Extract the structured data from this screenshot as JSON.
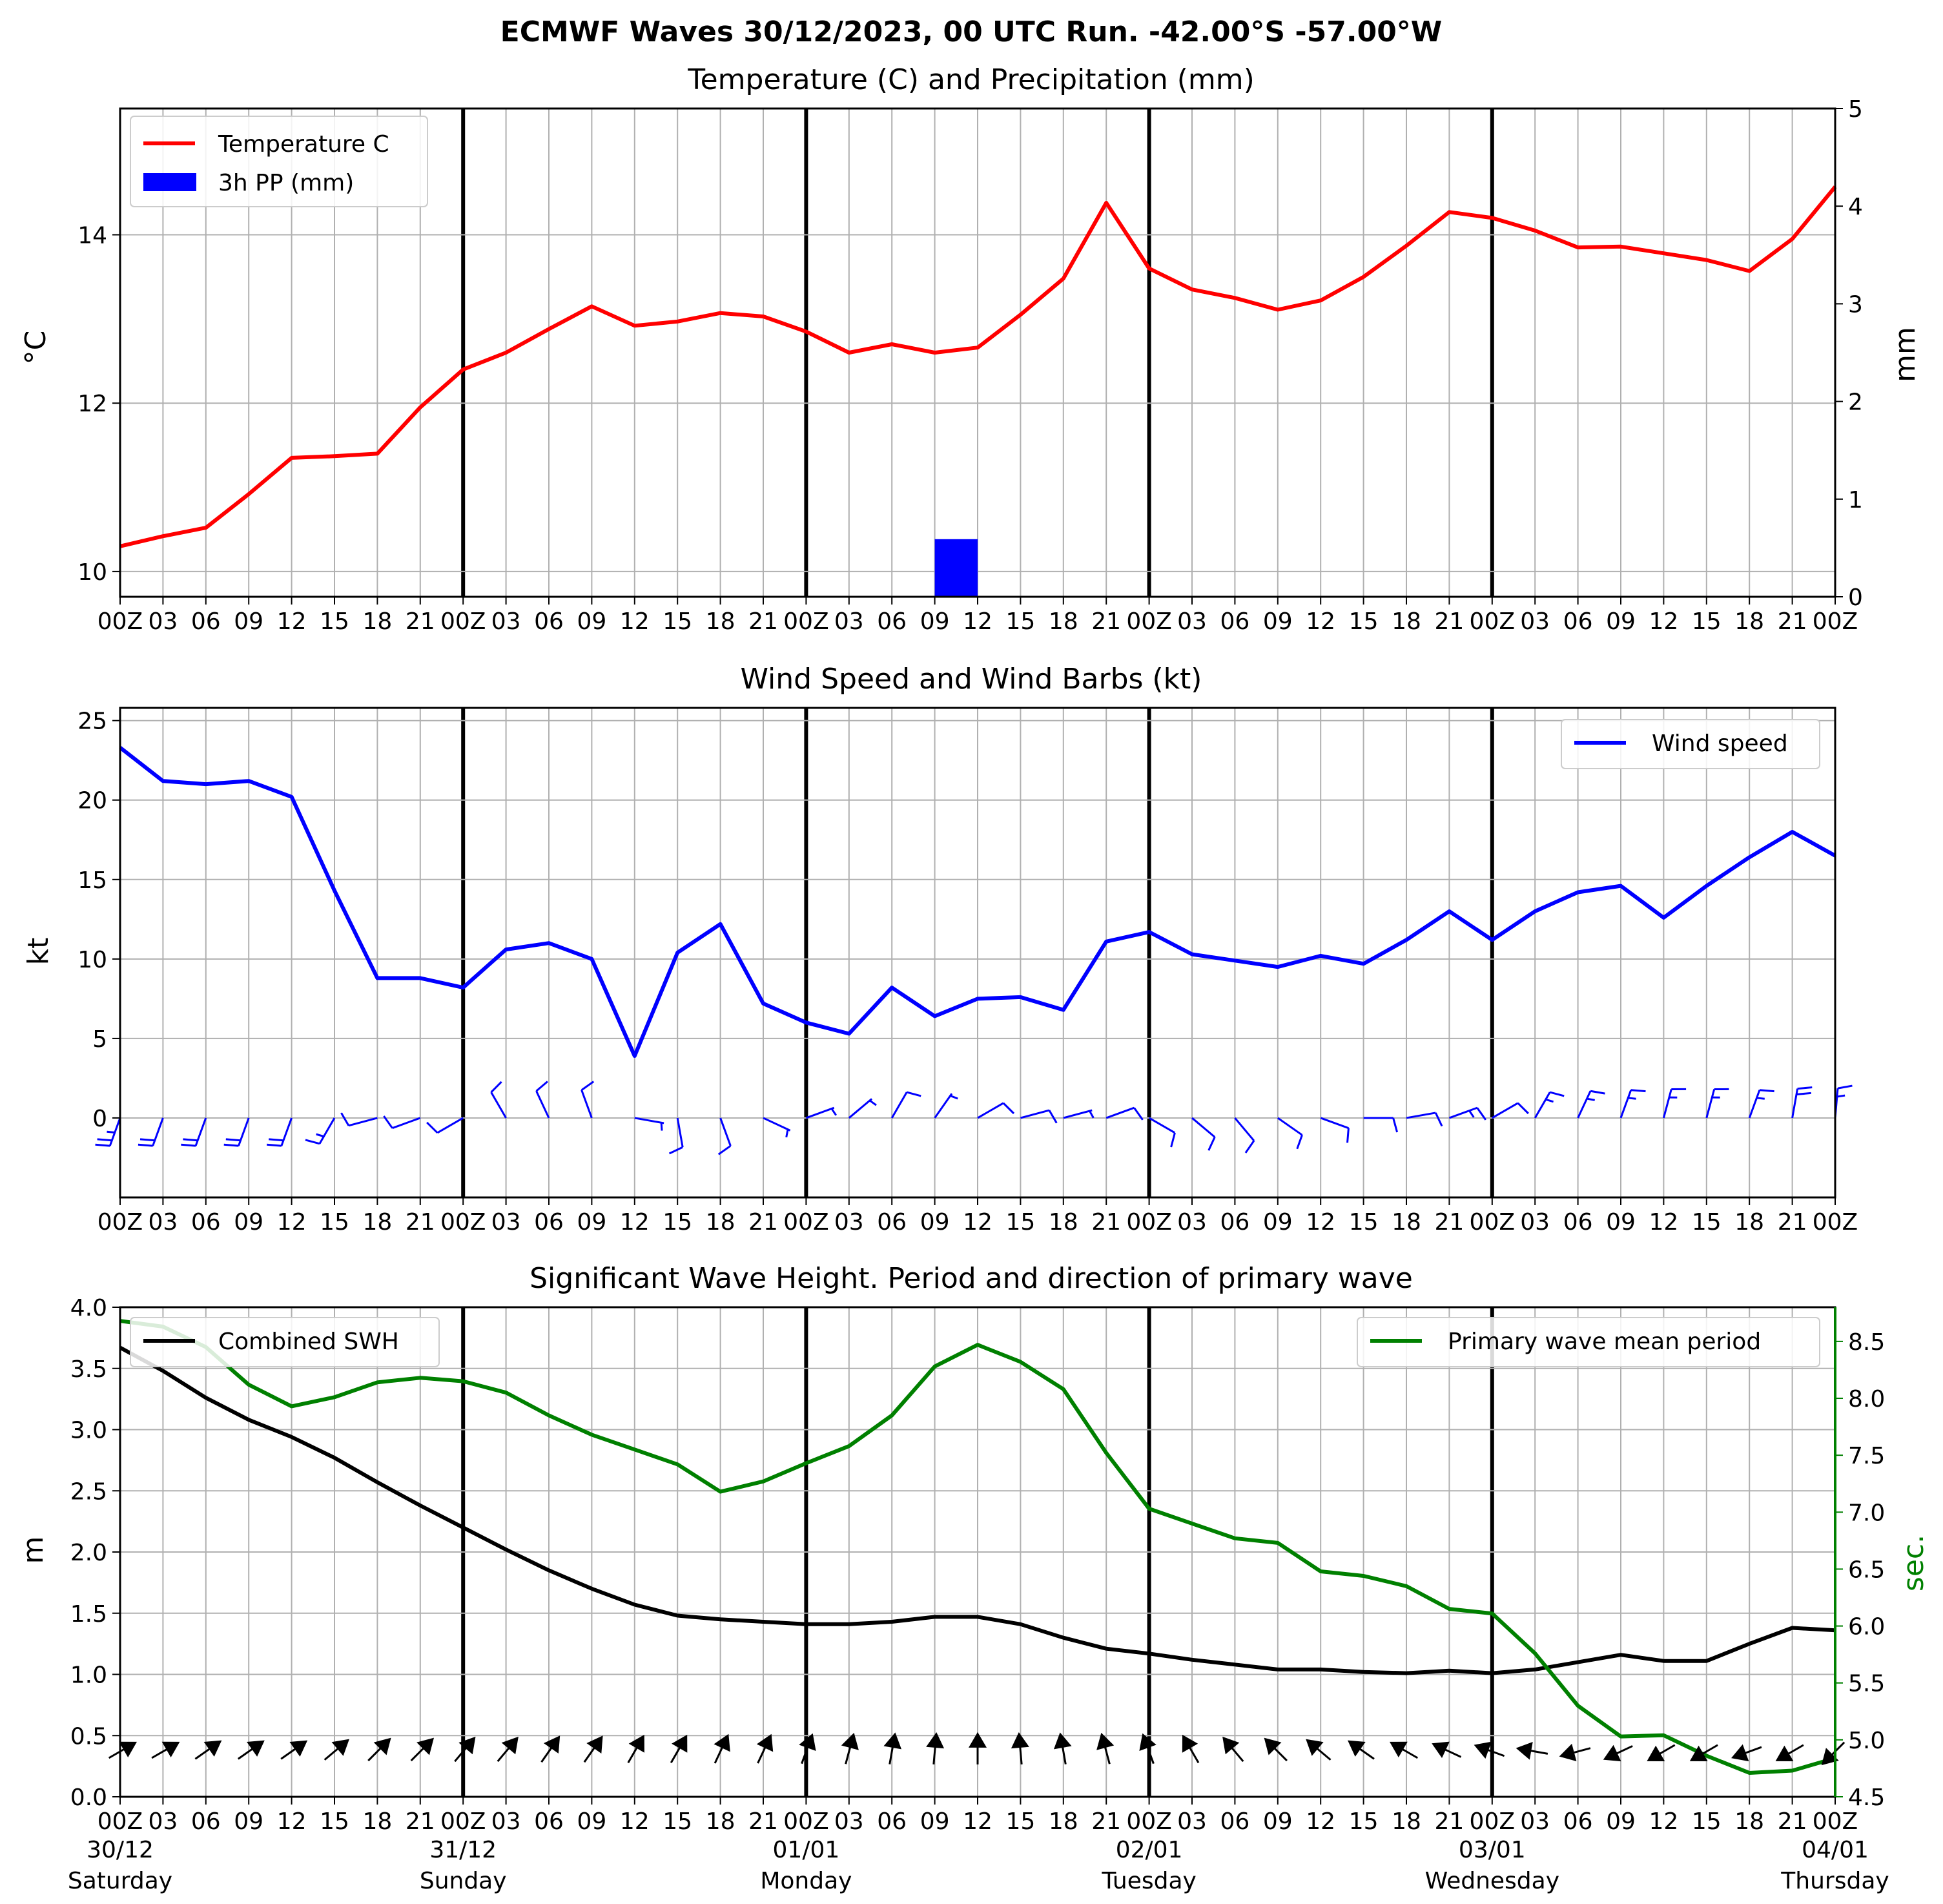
{
  "figure_title": "ECMWF Waves 30/12/2023, 00 UTC Run. -42.00°S -57.00°W",
  "time_tick_labels": [
    "00Z",
    "03",
    "06",
    "09",
    "12",
    "15",
    "18",
    "21",
    "00Z",
    "03",
    "06",
    "09",
    "12",
    "15",
    "18",
    "21",
    "00Z",
    "03",
    "06",
    "09",
    "12",
    "15",
    "18",
    "21",
    "00Z",
    "03",
    "06",
    "09",
    "12",
    "15",
    "18",
    "21",
    "00Z",
    "03",
    "06",
    "09",
    "12",
    "15",
    "18",
    "21",
    "00Z"
  ],
  "date_labels": [
    {
      "date": "30/12",
      "day": "Saturday"
    },
    {
      "date": "31/12",
      "day": "Sunday"
    },
    {
      "date": "01/01",
      "day": "Monday"
    },
    {
      "date": "02/01",
      "day": "Tuesday"
    },
    {
      "date": "03/01",
      "day": "Wednesday"
    },
    {
      "date": "04/01",
      "day": "Thursday"
    }
  ],
  "colors": {
    "temperature": "#ff0000",
    "precipitation": "#0000ff",
    "wind": "#0000ff",
    "swh": "#000000",
    "period": "#008000",
    "grid": "#b0b0b0"
  },
  "chart_data": [
    {
      "type": "line",
      "title": "Temperature (C) and Precipitation (mm)",
      "x_unit": "hours from 30/12/2023 00Z",
      "xlim": [
        0,
        120
      ],
      "ylabel": "°C",
      "ylim": [
        9.7,
        15.5
      ],
      "yticks": [
        10,
        12,
        14
      ],
      "y2label": "mm",
      "y2lim": [
        0,
        5
      ],
      "y2ticks": [
        0,
        1,
        2,
        3,
        4,
        5
      ],
      "grid": true,
      "legend": "top-left",
      "x": [
        0,
        3,
        6,
        9,
        12,
        15,
        18,
        21,
        24,
        27,
        30,
        33,
        36,
        39,
        42,
        45,
        48,
        51,
        54,
        57,
        60,
        63,
        66,
        69,
        72,
        75,
        78,
        81,
        84,
        87,
        90,
        93,
        96,
        99,
        102,
        105,
        108,
        111,
        114,
        117,
        120
      ],
      "series": [
        {
          "name": "Temperature C",
          "axis": "left",
          "values": [
            10.3,
            10.42,
            10.52,
            10.92,
            11.35,
            11.37,
            11.4,
            11.95,
            12.4,
            12.6,
            12.88,
            13.15,
            12.92,
            12.97,
            13.07,
            13.03,
            12.85,
            12.6,
            12.7,
            12.6,
            12.66,
            13.05,
            13.48,
            14.38,
            13.6,
            13.35,
            13.25,
            13.11,
            13.22,
            13.5,
            13.87,
            14.27,
            14.2,
            14.05,
            13.85,
            13.86,
            13.78,
            13.7,
            13.57,
            13.95,
            14.57
          ]
        },
        {
          "name": "3h PP (mm)",
          "axis": "right",
          "type": "bar",
          "values": [
            0,
            0,
            0.01,
            0.01,
            0,
            0,
            0,
            0,
            0,
            0,
            0,
            0,
            0,
            0,
            0,
            0,
            0,
            0,
            0,
            0.59,
            0,
            0,
            0,
            0,
            0,
            0,
            0,
            0,
            0,
            0,
            0,
            0,
            0,
            0,
            0,
            0,
            0,
            0.01,
            0,
            0,
            0
          ]
        }
      ]
    },
    {
      "type": "line",
      "title": "Wind Speed and Wind Barbs (kt)",
      "xlim": [
        0,
        120
      ],
      "ylabel": "kt",
      "ylim": [
        -5,
        25.8
      ],
      "yticks": [
        0,
        5,
        10,
        15,
        20,
        25
      ],
      "grid": true,
      "legend": "top-right",
      "x": [
        0,
        3,
        6,
        9,
        12,
        15,
        18,
        21,
        24,
        27,
        30,
        33,
        36,
        39,
        42,
        45,
        48,
        51,
        54,
        57,
        60,
        63,
        66,
        69,
        72,
        75,
        78,
        81,
        84,
        87,
        90,
        93,
        96,
        99,
        102,
        105,
        108,
        111,
        114,
        117,
        120
      ],
      "series": [
        {
          "name": "Wind speed",
          "values": [
            23.3,
            21.2,
            21.0,
            21.2,
            20.2,
            14.3,
            8.8,
            8.8,
            8.2,
            10.6,
            11.0,
            10.0,
            3.9,
            10.4,
            12.2,
            7.2,
            6.0,
            5.3,
            8.2,
            6.4,
            7.5,
            7.6,
            6.8,
            11.1,
            11.7,
            10.3,
            9.9,
            9.5,
            10.2,
            9.7,
            11.2,
            13.0,
            11.2,
            13.0,
            14.2,
            14.6,
            12.6,
            14.6,
            16.4,
            18.0,
            16.5
          ]
        }
      ],
      "wind_barbs": {
        "description": "barb direction in degrees (meteorological, direction wind comes from)",
        "directions": [
          200,
          200,
          200,
          200,
          200,
          210,
          255,
          250,
          240,
          330,
          335,
          340,
          100,
          170,
          160,
          115,
          70,
          50,
          30,
          35,
          60,
          75,
          75,
          70,
          120,
          130,
          140,
          125,
          110,
          90,
          80,
          70,
          60,
          30,
          25,
          20,
          15,
          15,
          20,
          10,
          5
        ]
      }
    },
    {
      "type": "line",
      "title": "Significant Wave Height. Period and direction of primary wave",
      "xlim": [
        0,
        120
      ],
      "ylabel": "m",
      "ylim": [
        0,
        4.0
      ],
      "yticks": [
        0.0,
        0.5,
        1.0,
        1.5,
        2.0,
        2.5,
        3.0,
        3.5,
        4.0
      ],
      "y2label": "sec.",
      "y2lim": [
        4.5,
        8.8
      ],
      "y2ticks": [
        4.5,
        5.0,
        5.5,
        6.0,
        6.5,
        7.0,
        7.5,
        8.0,
        8.5
      ],
      "grid": true,
      "x": [
        0,
        3,
        6,
        9,
        12,
        15,
        18,
        21,
        24,
        27,
        30,
        33,
        36,
        39,
        42,
        45,
        48,
        51,
        54,
        57,
        60,
        63,
        66,
        69,
        72,
        75,
        78,
        81,
        84,
        87,
        90,
        93,
        96,
        99,
        102,
        105,
        108,
        111,
        114,
        117,
        120
      ],
      "series": [
        {
          "name": "Combined SWH",
          "axis": "left",
          "legend": "top-left",
          "values": [
            3.67,
            3.48,
            3.26,
            3.08,
            2.94,
            2.77,
            2.57,
            2.38,
            2.2,
            2.02,
            1.85,
            1.7,
            1.57,
            1.48,
            1.45,
            1.43,
            1.41,
            1.41,
            1.43,
            1.47,
            1.47,
            1.41,
            1.3,
            1.21,
            1.17,
            1.12,
            1.08,
            1.04,
            1.04,
            1.02,
            1.01,
            1.03,
            1.01,
            1.04,
            1.1,
            1.16,
            1.11,
            1.11,
            1.25,
            1.38,
            1.36
          ]
        },
        {
          "name": "Primary wave mean period",
          "axis": "right",
          "legend": "top-right",
          "values": [
            8.68,
            8.63,
            8.45,
            8.12,
            7.93,
            8.01,
            8.14,
            8.18,
            8.15,
            8.05,
            7.85,
            7.68,
            7.55,
            7.42,
            7.18,
            7.27,
            7.43,
            7.58,
            7.85,
            8.28,
            8.47,
            8.32,
            8.08,
            7.52,
            7.03,
            6.9,
            6.77,
            6.73,
            6.48,
            6.44,
            6.35,
            6.15,
            6.11,
            5.76,
            5.3,
            5.03,
            5.04,
            4.86,
            4.71,
            4.73,
            4.84
          ]
        }
      ],
      "wave_direction_arrows": {
        "description": "arrow direction in degrees (direction the primary wave travels toward)",
        "directions": [
          60,
          60,
          55,
          55,
          55,
          50,
          45,
          45,
          40,
          40,
          35,
          35,
          30,
          30,
          25,
          25,
          20,
          15,
          10,
          5,
          0,
          355,
          350,
          345,
          340,
          330,
          320,
          315,
          310,
          305,
          300,
          295,
          290,
          280,
          255,
          245,
          240,
          240,
          250,
          240,
          225
        ]
      }
    }
  ]
}
